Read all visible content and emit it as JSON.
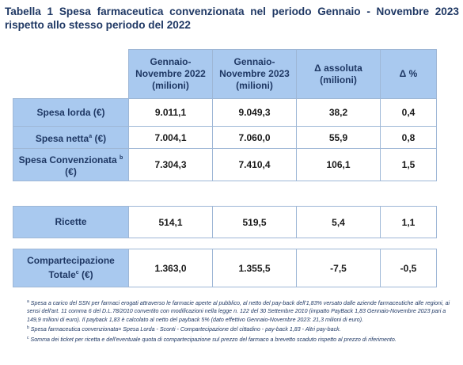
{
  "title": {
    "line1": "Tabella 1 Spesa farmaceutica convenzionata nel periodo Gennaio - Novembre 2023",
    "line2": "rispetto allo stesso periodo del 2022"
  },
  "table": {
    "headers": [
      "Gennaio-Novembre 2022 (milioni)",
      "Gennaio-Novembre 2023 (milioni)",
      "Δ assoluta (milioni)",
      "Δ %"
    ],
    "rows": [
      {
        "label": "Spesa lorda (€)",
        "label_sup": "",
        "label_suffix": "",
        "values": [
          "9.011,1",
          "9.049,3",
          "38,2",
          "0,4"
        ]
      },
      {
        "label": "Spesa netta",
        "label_sup": "a",
        "label_suffix": " (€)",
        "values": [
          "7.004,1",
          "7.060,0",
          "55,9",
          "0,8"
        ]
      },
      {
        "label": "Spesa Convenzionata",
        "label_sup": "b",
        "label_suffix": " (€)",
        "values": [
          "7.304,3",
          "7.410,4",
          "106,1",
          "1,5"
        ]
      }
    ],
    "ricette": {
      "label": "Ricette",
      "values": [
        "514,1",
        "519,5",
        "5,4",
        "1,1"
      ]
    },
    "compartecipazione": {
      "label": "Compartecipazione Totale",
      "label_sup": "c",
      "label_suffix": " (€)",
      "values": [
        "1.363,0",
        "1.355,5",
        "-7,5",
        "-0,5"
      ]
    }
  },
  "notes": {
    "a_marker": "a",
    "a": "Spesa a carico del SSN per farmaci erogati attraverso le farmacie aperte al pubblico, al netto del pay-back dell'1,83% versato dalle aziende farmaceutiche alle regioni, ai sensi dell'art. 11 comma 6 del D.L.78/2010 convertito con modificazioni nella legge n. 122 del 30 Settembre 2010 (impatto PayBack 1,83 Gennaio-Novembre 2023 pari a 149,9 milioni di euro). Il payback 1,83 è calcolato al netto del payback 5% (dato effettivo Gennaio-Novembre 2023: 21,3 milioni di euro).",
    "b_marker": "b",
    "b": "Spesa farmaceutica convenzionata= Spesa Lorda - Sconti - Compartecipazione del cittadino - pay-back 1,83 - Altri pay-back.",
    "c_marker": "c",
    "c": "Somma dei ticket per ricetta e dell'eventuale quota di compartecipazione sul prezzo del farmaco a brevetto scaduto rispetto al prezzo di riferimento."
  }
}
